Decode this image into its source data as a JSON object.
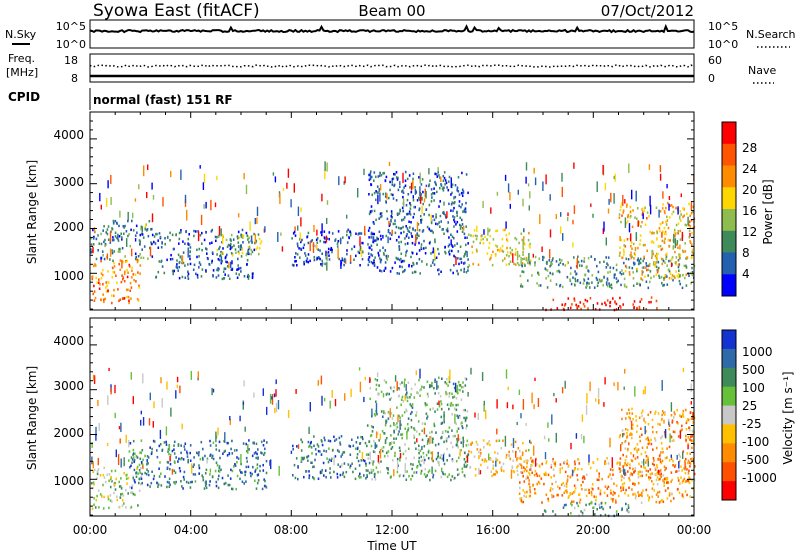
{
  "header": {
    "station": "Syowa East (fitACF)",
    "beam": "Beam 00",
    "date": "07/Oct/2012"
  },
  "status_panels": {
    "nsky_label": "N.Sky",
    "nsearch_label": "N.Search",
    "freq_label_1": "Freq.",
    "freq_label_2": "[MHz]",
    "nave_label": "Nave",
    "cpid_label": "CPID",
    "cpid_text": "normal (fast) 151 RF",
    "nsky_ticks": [
      "10^5",
      "10^0"
    ],
    "nsearch_ticks": [
      "10^5",
      "10^0"
    ],
    "freq_ticks": [
      "18",
      "8"
    ],
    "nave_ticks": [
      "60",
      "0"
    ]
  },
  "power_colorbar": {
    "title": "Power [dB]",
    "labels": [
      "28",
      "24",
      "20",
      "16",
      "12",
      "8",
      "4"
    ],
    "colors": [
      "#ff0000",
      "#ff5500",
      "#ff8c00",
      "#ffd700",
      "#8fbc4f",
      "#3e8a5a",
      "#2460b0",
      "#0000ff"
    ]
  },
  "velocity_colorbar": {
    "title": "Velocity [m s⁻¹]",
    "labels": [
      "1000",
      "500",
      "100",
      "25",
      "-25",
      "-100",
      "-500",
      "-1000"
    ],
    "colors": [
      "#1432d2",
      "#2e6aa8",
      "#3e8a5a",
      "#66c03a",
      "#c8c8c8",
      "#ffc000",
      "#ff8c00",
      "#ff5000",
      "#ff0000"
    ]
  },
  "x_axis": {
    "title": "Time UT",
    "tick_labels": [
      "00:00",
      "04:00",
      "08:00",
      "12:00",
      "16:00",
      "20:00",
      "00:00"
    ]
  },
  "y_axis": {
    "title": "Slant Range [km]",
    "tick_labels": [
      "1000",
      "2000",
      "3000",
      "4000"
    ]
  },
  "chart_data": [
    {
      "type": "heatmap",
      "name": "power",
      "x_range_hours": [
        0,
        24
      ],
      "ylim": [
        180,
        4600
      ],
      "colorbar_label": "Power [dB]",
      "regions": [
        {
          "t0": 0.0,
          "t1": 2.0,
          "r0": 350,
          "r1": 1350,
          "level": 0.75
        },
        {
          "t0": 0.0,
          "t1": 2.5,
          "r0": 1300,
          "r1": 2200,
          "level": 0.25
        },
        {
          "t0": 2.5,
          "t1": 6.5,
          "r0": 900,
          "r1": 2000,
          "level": 0.2
        },
        {
          "t0": 5.0,
          "t1": 6.8,
          "r0": 1400,
          "r1": 1900,
          "level": 0.45
        },
        {
          "t0": 8.0,
          "t1": 11.5,
          "r0": 1200,
          "r1": 2000,
          "level": 0.15
        },
        {
          "t0": 11.0,
          "t1": 15.0,
          "r0": 1000,
          "r1": 3300,
          "level": 0.2
        },
        {
          "t0": 15.0,
          "t1": 17.5,
          "r0": 1200,
          "r1": 2000,
          "level": 0.55
        },
        {
          "t0": 17.0,
          "t1": 24.0,
          "r0": 700,
          "r1": 1400,
          "level": 0.3
        },
        {
          "t0": 18.0,
          "t1": 22.5,
          "r0": 200,
          "r1": 500,
          "level": 0.95
        },
        {
          "t0": 21.0,
          "t1": 24.0,
          "r0": 900,
          "r1": 2600,
          "level": 0.6
        }
      ]
    },
    {
      "type": "heatmap",
      "name": "velocity",
      "x_range_hours": [
        0,
        24
      ],
      "ylim": [
        180,
        4600
      ],
      "colorbar_label": "Velocity [m s-1]",
      "regions": [
        {
          "t0": 0.0,
          "t1": 2.0,
          "r0": 350,
          "r1": 1300,
          "level": 0.55
        },
        {
          "t0": 1.5,
          "t1": 7.0,
          "r0": 800,
          "r1": 1900,
          "level": 0.8
        },
        {
          "t0": 8.0,
          "t1": 11.0,
          "r0": 1000,
          "r1": 2000,
          "level": 0.8
        },
        {
          "t0": 11.0,
          "t1": 15.0,
          "r0": 1000,
          "r1": 3300,
          "level": 0.65
        },
        {
          "t0": 15.0,
          "t1": 17.5,
          "r0": 1100,
          "r1": 1900,
          "level": 0.4
        },
        {
          "t0": 17.0,
          "t1": 24.0,
          "r0": 500,
          "r1": 1500,
          "level": 0.3
        },
        {
          "t0": 18.0,
          "t1": 21.5,
          "r0": 200,
          "r1": 500,
          "level": 0.7
        },
        {
          "t0": 21.0,
          "t1": 24.0,
          "r0": 900,
          "r1": 2600,
          "level": 0.3
        }
      ]
    }
  ]
}
